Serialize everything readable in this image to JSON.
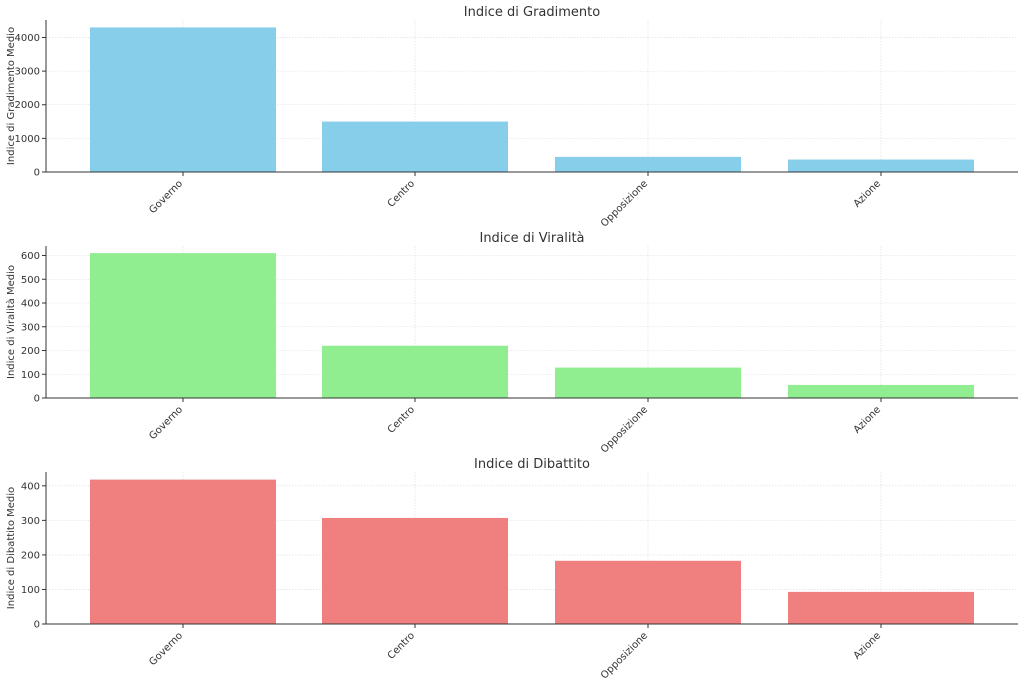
{
  "chart_data": [
    {
      "type": "bar",
      "title": "Indice di Gradimento",
      "ylabel": "Indice di Gradimento Medio",
      "xlabel": "",
      "categories": [
        "Governo",
        "Centro",
        "Opposizione",
        "Azione"
      ],
      "values": [
        4300,
        1500,
        450,
        370
      ],
      "ylim": [
        0,
        4520
      ],
      "yticks": [
        0,
        1000,
        2000,
        3000,
        4000
      ],
      "color": "#87ceeb",
      "grid": true
    },
    {
      "type": "bar",
      "title": "Indice di Viralità",
      "ylabel": "Indice di Viralità Medio",
      "xlabel": "",
      "categories": [
        "Governo",
        "Centro",
        "Opposizione",
        "Azione"
      ],
      "values": [
        610,
        220,
        128,
        55
      ],
      "ylim": [
        0,
        640
      ],
      "yticks": [
        0,
        100,
        200,
        300,
        400,
        500,
        600
      ],
      "color": "#90ee90",
      "grid": true
    },
    {
      "type": "bar",
      "title": "Indice di Dibattito",
      "ylabel": "Indice di Dibattito Medio",
      "xlabel": "",
      "categories": [
        "Governo",
        "Centro",
        "Opposizione",
        "Azione"
      ],
      "values": [
        418,
        307,
        183,
        93
      ],
      "ylim": [
        0,
        440
      ],
      "yticks": [
        0,
        100,
        200,
        300,
        400
      ],
      "color": "#f08080",
      "grid": true
    }
  ]
}
